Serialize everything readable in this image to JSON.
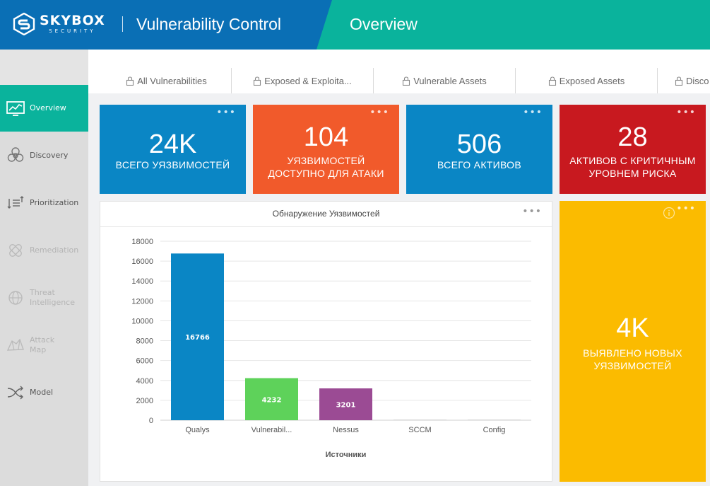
{
  "header": {
    "brand": "SKYBOX",
    "brand_sub": "SECURITY",
    "app_title": "Vulnerability Control",
    "page_title": "Overview"
  },
  "sidebar": {
    "items": [
      {
        "label": "Overview",
        "icon": "chart-monitor-icon",
        "active": true
      },
      {
        "label": "Discovery",
        "icon": "biohazard-icon",
        "active": false
      },
      {
        "label": "Prioritization",
        "icon": "sort-list-icon",
        "active": false
      },
      {
        "label": "Remediation",
        "icon": "bandage-icon",
        "active": false
      },
      {
        "label": "Threat Intelligence",
        "icon": "globe-brain-icon",
        "active": false
      },
      {
        "label": "Attack Map",
        "icon": "map-icon",
        "active": false
      },
      {
        "label": "Model",
        "icon": "shuffle-icon",
        "active": false
      }
    ]
  },
  "tabs": [
    {
      "label": "All Vulnerabilities"
    },
    {
      "label": "Exposed & Exploita..."
    },
    {
      "label": "Vulnerable Assets"
    },
    {
      "label": "Exposed Assets"
    },
    {
      "label": "Disco"
    }
  ],
  "kpis": [
    {
      "value": "24K",
      "label_1": "ВСЕГО УЯЗВИМОСТЕЙ",
      "label_2": "",
      "color": "#0a86c5"
    },
    {
      "value": "104",
      "label_1": "УЯЗВИМОСТЕЙ",
      "label_2": "ДОСТУПНО ДЛЯ АТАКИ",
      "color": "#f15a2b"
    },
    {
      "value": "506",
      "label_1": "ВСЕГО АКТИВОВ",
      "label_2": "",
      "color": "#0a86c5"
    },
    {
      "value": "28",
      "label_1": "АКТИВОВ С КРИТИЧНЫМ",
      "label_2": "УРОВНЕМ РИСКА",
      "color": "#c8191f"
    },
    {
      "value": "4K",
      "label_1": "ВЫЯВЛЕНО НОВЫХ",
      "label_2": "УЯЗВИМОСТЕЙ",
      "color": "#fbbb00"
    }
  ],
  "card_menu": "•••",
  "chart_data": {
    "type": "bar",
    "title": "Обнаружение Уязвимостей",
    "xlabel": "Источники",
    "ylabel": "",
    "categories": [
      "Qualys",
      "Vulnerabil...",
      "Nessus",
      "SCCM",
      "Config"
    ],
    "values": [
      16766,
      4232,
      3201,
      0,
      0
    ],
    "data_labels": [
      "16766",
      "4232",
      "3201",
      "",
      ""
    ],
    "colors": [
      "#0a86c5",
      "#5ed25a",
      "#9b4b94",
      "#cccccc",
      "#cccccc"
    ],
    "ylim": [
      0,
      18000
    ],
    "yticks": [
      0,
      2000,
      4000,
      6000,
      8000,
      10000,
      12000,
      14000,
      16000,
      18000
    ],
    "grid": true
  }
}
